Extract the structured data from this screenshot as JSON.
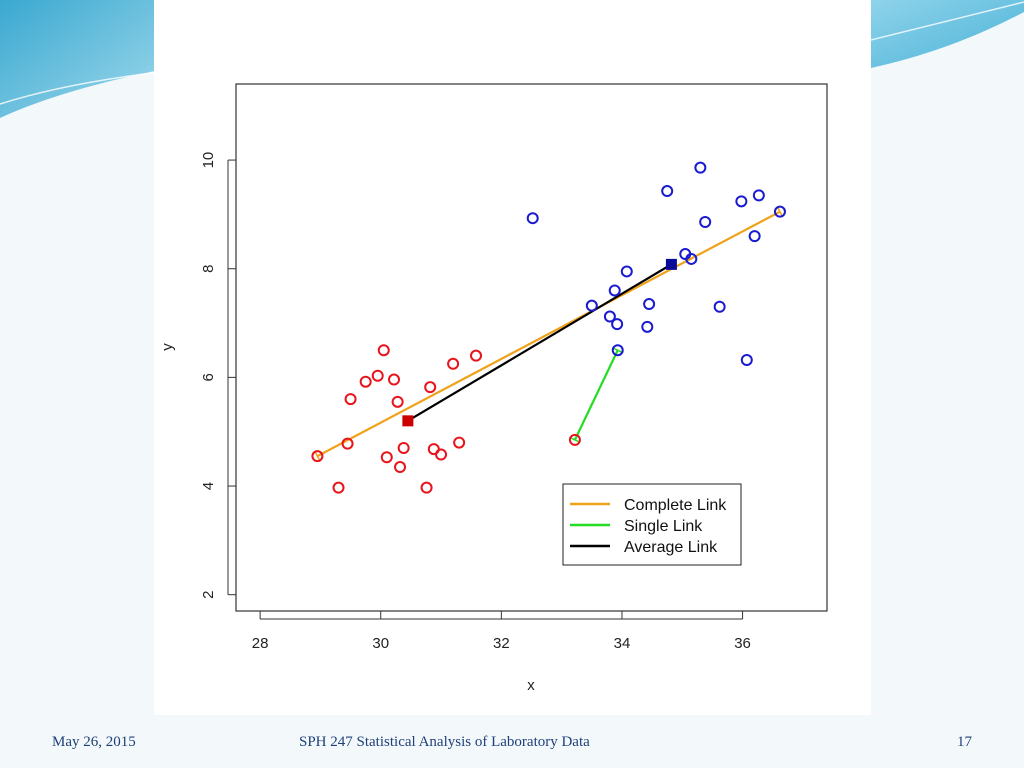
{
  "footer": {
    "date": "May 26, 2015",
    "title": "SPH 247 Statistical Analysis of Laboratory Data",
    "page": "17"
  },
  "colors": {
    "cluster1": "#e8141b",
    "cluster2": "#1a1ad0",
    "complete": "#f0a21a",
    "single": "#22dd22",
    "average": "#000000",
    "slide_accent": "#4fb6d8",
    "footer_text": "#1f3f7a"
  },
  "chart_data": {
    "type": "scatter",
    "xlabel": "x",
    "ylabel": "y",
    "xlim": [
      27.6,
      37.4
    ],
    "ylim": [
      1.7,
      11.4
    ],
    "xticks": [
      28,
      30,
      32,
      34,
      36
    ],
    "yticks": [
      2,
      4,
      6,
      8,
      10
    ],
    "grid": false,
    "legend_position": "bottom-right",
    "series": [
      {
        "color": "#e8141b",
        "marker": "open-circle",
        "points": [
          [
            28.95,
            4.55
          ],
          [
            29.3,
            3.97
          ],
          [
            29.45,
            4.78
          ],
          [
            29.5,
            5.6
          ],
          [
            29.75,
            5.92
          ],
          [
            29.95,
            6.03
          ],
          [
            30.05,
            6.5
          ],
          [
            30.1,
            4.53
          ],
          [
            30.22,
            5.96
          ],
          [
            30.28,
            5.55
          ],
          [
            30.32,
            4.35
          ],
          [
            30.38,
            4.7
          ],
          [
            30.76,
            3.97
          ],
          [
            30.82,
            5.82
          ],
          [
            30.88,
            4.68
          ],
          [
            31.0,
            4.58
          ],
          [
            31.2,
            6.25
          ],
          [
            31.3,
            4.8
          ],
          [
            31.58,
            6.4
          ],
          [
            33.22,
            4.85
          ]
        ]
      },
      {
        "color": "#1a1ad0",
        "marker": "open-circle",
        "points": [
          [
            32.52,
            8.93
          ],
          [
            33.5,
            7.32
          ],
          [
            33.8,
            7.12
          ],
          [
            33.88,
            7.6
          ],
          [
            33.92,
            6.98
          ],
          [
            33.93,
            6.5
          ],
          [
            34.08,
            7.95
          ],
          [
            34.42,
            6.93
          ],
          [
            34.45,
            7.35
          ],
          [
            34.75,
            9.43
          ],
          [
            35.05,
            8.27
          ],
          [
            35.15,
            8.18
          ],
          [
            35.3,
            9.86
          ],
          [
            35.38,
            8.86
          ],
          [
            35.62,
            7.3
          ],
          [
            35.98,
            9.24
          ],
          [
            36.07,
            6.32
          ],
          [
            36.2,
            8.6
          ],
          [
            36.27,
            9.35
          ],
          [
            36.62,
            9.05
          ]
        ]
      }
    ],
    "centroids": [
      {
        "x": 30.45,
        "y": 5.2,
        "color": "#cc0000"
      },
      {
        "x": 34.82,
        "y": 8.08,
        "color": "#0a0a99"
      }
    ],
    "links": [
      {
        "name": "Complete Link",
        "color": "#f0a21a",
        "from": [
          28.95,
          4.55
        ],
        "to": [
          36.62,
          9.05
        ]
      },
      {
        "name": "Single Link",
        "color": "#22dd22",
        "from": [
          33.22,
          4.85
        ],
        "to": [
          33.93,
          6.5
        ]
      },
      {
        "name": "Average Link",
        "color": "#000000",
        "from": [
          30.45,
          5.2
        ],
        "to": [
          34.82,
          8.08
        ]
      }
    ]
  }
}
